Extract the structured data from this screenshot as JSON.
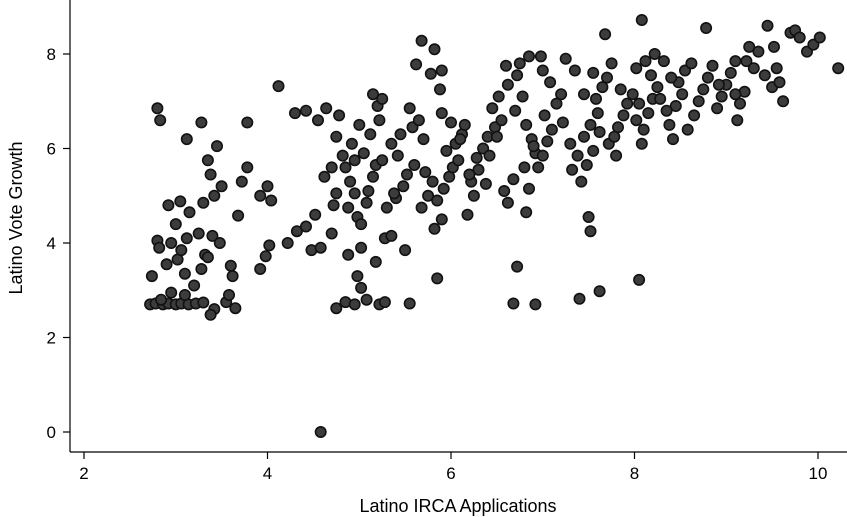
{
  "chart_data": {
    "type": "scatter",
    "title": "",
    "xlabel": "Latino IRCA Applications",
    "ylabel": "Latino Vote Growth",
    "xlim": [
      1.8,
      10.35
    ],
    "ylim": [
      -0.2,
      9.0
    ],
    "xticks": [
      2,
      4,
      6,
      8,
      10
    ],
    "yticks": [
      0,
      2,
      4,
      6,
      8
    ],
    "grid": false,
    "legend": "none",
    "marker_fill": "#3c3c3c",
    "marker_edge": "#111111",
    "points": [
      [
        2.72,
        2.7
      ],
      [
        2.78,
        2.72
      ],
      [
        2.86,
        2.7
      ],
      [
        2.92,
        2.72
      ],
      [
        3.0,
        2.7
      ],
      [
        3.06,
        2.72
      ],
      [
        3.14,
        2.7
      ],
      [
        3.22,
        2.72
      ],
      [
        2.84,
        2.8
      ],
      [
        3.3,
        2.74
      ],
      [
        2.95,
        2.95
      ],
      [
        3.1,
        2.9
      ],
      [
        3.42,
        2.6
      ],
      [
        3.55,
        2.75
      ],
      [
        3.58,
        2.9
      ],
      [
        3.65,
        2.62
      ],
      [
        3.38,
        2.48
      ],
      [
        2.74,
        3.3
      ],
      [
        2.9,
        3.55
      ],
      [
        3.02,
        3.65
      ],
      [
        3.1,
        3.35
      ],
      [
        3.2,
        3.1
      ],
      [
        3.28,
        3.45
      ],
      [
        3.32,
        3.75
      ],
      [
        3.06,
        3.85
      ],
      [
        2.95,
        4.0
      ],
      [
        2.8,
        4.05
      ],
      [
        3.12,
        4.1
      ],
      [
        3.25,
        4.2
      ],
      [
        3.4,
        4.15
      ],
      [
        3.48,
        4.0
      ],
      [
        3.35,
        3.7
      ],
      [
        2.82,
        3.9
      ],
      [
        3.0,
        4.4
      ],
      [
        2.92,
        4.8
      ],
      [
        3.05,
        4.88
      ],
      [
        3.15,
        4.65
      ],
      [
        3.3,
        4.85
      ],
      [
        3.42,
        5.0
      ],
      [
        3.5,
        5.2
      ],
      [
        3.38,
        5.45
      ],
      [
        3.35,
        5.75
      ],
      [
        3.45,
        6.05
      ],
      [
        3.72,
        5.3
      ],
      [
        3.78,
        5.6
      ],
      [
        3.68,
        4.58
      ],
      [
        3.6,
        3.52
      ],
      [
        3.62,
        3.3
      ],
      [
        2.8,
        6.85
      ],
      [
        2.83,
        6.6
      ],
      [
        3.12,
        6.2
      ],
      [
        3.28,
        6.55
      ],
      [
        3.78,
        6.55
      ],
      [
        3.92,
        3.45
      ],
      [
        3.98,
        3.72
      ],
      [
        4.02,
        3.95
      ],
      [
        3.92,
        5.0
      ],
      [
        4.0,
        5.2
      ],
      [
        4.04,
        4.9
      ],
      [
        4.12,
        7.32
      ],
      [
        4.22,
        4.0
      ],
      [
        4.32,
        4.25
      ],
      [
        4.42,
        4.35
      ],
      [
        4.52,
        4.6
      ],
      [
        4.3,
        6.75
      ],
      [
        4.42,
        6.8
      ],
      [
        4.55,
        6.6
      ],
      [
        4.62,
        5.4
      ],
      [
        4.48,
        3.85
      ],
      [
        4.58,
        3.9
      ],
      [
        4.7,
        4.2
      ],
      [
        4.72,
        4.8
      ],
      [
        4.64,
        6.85
      ],
      [
        4.78,
        6.7
      ],
      [
        4.75,
        6.25
      ],
      [
        4.82,
        5.85
      ],
      [
        4.85,
        5.6
      ],
      [
        4.9,
        5.3
      ],
      [
        4.95,
        5.05
      ],
      [
        4.88,
        4.75
      ],
      [
        4.98,
        4.55
      ],
      [
        5.02,
        4.4
      ],
      [
        5.08,
        4.85
      ],
      [
        5.1,
        5.1
      ],
      [
        5.15,
        5.4
      ],
      [
        5.18,
        5.65
      ],
      [
        5.05,
        5.9
      ],
      [
        4.92,
        6.1
      ],
      [
        5.0,
        6.5
      ],
      [
        5.12,
        6.3
      ],
      [
        5.22,
        6.6
      ],
      [
        5.2,
        6.9
      ],
      [
        5.15,
        7.15
      ],
      [
        5.25,
        7.05
      ],
      [
        4.98,
        3.3
      ],
      [
        5.02,
        3.05
      ],
      [
        5.08,
        2.8
      ],
      [
        4.85,
        2.75
      ],
      [
        4.75,
        2.62
      ],
      [
        4.95,
        2.7
      ],
      [
        5.22,
        2.7
      ],
      [
        5.28,
        2.75
      ],
      [
        5.55,
        2.72
      ],
      [
        4.88,
        3.75
      ],
      [
        5.02,
        3.9
      ],
      [
        5.18,
        3.6
      ],
      [
        5.28,
        4.1
      ],
      [
        5.35,
        4.15
      ],
      [
        5.5,
        3.85
      ],
      [
        5.3,
        4.75
      ],
      [
        5.4,
        4.95
      ],
      [
        5.48,
        5.2
      ],
      [
        5.52,
        5.45
      ],
      [
        5.6,
        5.65
      ],
      [
        5.42,
        5.85
      ],
      [
        5.35,
        6.1
      ],
      [
        5.45,
        6.3
      ],
      [
        5.58,
        6.45
      ],
      [
        5.65,
        6.6
      ],
      [
        5.55,
        6.85
      ],
      [
        5.62,
        7.78
      ],
      [
        5.68,
        8.28
      ],
      [
        5.82,
        8.1
      ],
      [
        5.9,
        7.65
      ],
      [
        5.78,
        7.58
      ],
      [
        5.88,
        7.25
      ],
      [
        5.72,
        5.5
      ],
      [
        5.8,
        5.3
      ],
      [
        5.75,
        5.0
      ],
      [
        5.68,
        4.75
      ],
      [
        5.85,
        4.9
      ],
      [
        5.92,
        5.15
      ],
      [
        5.98,
        5.4
      ],
      [
        6.02,
        5.6
      ],
      [
        6.08,
        5.75
      ],
      [
        5.95,
        5.95
      ],
      [
        6.05,
        6.1
      ],
      [
        6.12,
        6.3
      ],
      [
        6.0,
        6.55
      ],
      [
        5.9,
        6.75
      ],
      [
        5.82,
        4.3
      ],
      [
        5.9,
        4.5
      ],
      [
        5.85,
        3.25
      ],
      [
        6.18,
        4.6
      ],
      [
        6.25,
        5.0
      ],
      [
        6.22,
        5.3
      ],
      [
        6.3,
        5.55
      ],
      [
        6.28,
        5.8
      ],
      [
        6.35,
        6.0
      ],
      [
        6.42,
        5.85
      ],
      [
        6.4,
        6.25
      ],
      [
        6.48,
        6.45
      ],
      [
        6.55,
        6.6
      ],
      [
        6.45,
        6.85
      ],
      [
        6.52,
        7.1
      ],
      [
        6.62,
        7.35
      ],
      [
        6.6,
        7.75
      ],
      [
        6.75,
        7.8
      ],
      [
        6.85,
        7.95
      ],
      [
        6.72,
        7.55
      ],
      [
        6.78,
        7.1
      ],
      [
        6.7,
        6.8
      ],
      [
        6.82,
        6.5
      ],
      [
        6.88,
        6.2
      ],
      [
        6.92,
        5.9
      ],
      [
        6.8,
        5.6
      ],
      [
        6.68,
        5.35
      ],
      [
        6.58,
        5.1
      ],
      [
        6.62,
        4.85
      ],
      [
        6.72,
        3.5
      ],
      [
        6.68,
        2.72
      ],
      [
        6.92,
        2.7
      ],
      [
        6.82,
        4.65
      ],
      [
        6.85,
        5.15
      ],
      [
        6.95,
        5.6
      ],
      [
        7.0,
        5.85
      ],
      [
        7.05,
        6.15
      ],
      [
        7.1,
        6.4
      ],
      [
        7.02,
        6.7
      ],
      [
        7.15,
        6.95
      ],
      [
        7.2,
        7.15
      ],
      [
        7.08,
        7.4
      ],
      [
        7.0,
        7.65
      ],
      [
        6.98,
        7.95
      ],
      [
        7.25,
        7.9
      ],
      [
        7.35,
        7.65
      ],
      [
        7.3,
        6.1
      ],
      [
        7.38,
        5.85
      ],
      [
        7.32,
        5.55
      ],
      [
        7.42,
        5.3
      ],
      [
        7.48,
        5.65
      ],
      [
        7.55,
        5.95
      ],
      [
        7.45,
        6.25
      ],
      [
        7.52,
        6.5
      ],
      [
        7.6,
        6.75
      ],
      [
        7.58,
        7.05
      ],
      [
        7.65,
        7.3
      ],
      [
        7.55,
        7.6
      ],
      [
        7.7,
        7.5
      ],
      [
        7.75,
        7.8
      ],
      [
        7.68,
        8.42
      ],
      [
        7.62,
        6.35
      ],
      [
        7.72,
        6.1
      ],
      [
        7.8,
        5.85
      ],
      [
        7.82,
        6.45
      ],
      [
        7.88,
        6.7
      ],
      [
        7.92,
        6.95
      ],
      [
        7.85,
        7.25
      ],
      [
        7.98,
        7.15
      ],
      [
        8.05,
        6.95
      ],
      [
        8.02,
        6.6
      ],
      [
        8.1,
        6.4
      ],
      [
        8.08,
        6.1
      ],
      [
        8.15,
        6.75
      ],
      [
        8.2,
        7.05
      ],
      [
        8.25,
        7.3
      ],
      [
        8.18,
        7.55
      ],
      [
        8.12,
        7.85
      ],
      [
        8.08,
        8.72
      ],
      [
        8.22,
        8.0
      ],
      [
        8.32,
        7.85
      ],
      [
        8.28,
        7.05
      ],
      [
        8.35,
        6.8
      ],
      [
        8.38,
        6.5
      ],
      [
        8.42,
        6.2
      ],
      [
        8.45,
        6.9
      ],
      [
        8.52,
        7.15
      ],
      [
        8.48,
        7.4
      ],
      [
        8.55,
        7.65
      ],
      [
        8.62,
        7.8
      ],
      [
        8.58,
        6.4
      ],
      [
        8.65,
        6.7
      ],
      [
        8.7,
        7.0
      ],
      [
        8.75,
        7.25
      ],
      [
        8.8,
        7.5
      ],
      [
        8.85,
        7.75
      ],
      [
        8.78,
        8.55
      ],
      [
        8.9,
        6.85
      ],
      [
        8.95,
        7.1
      ],
      [
        9.0,
        7.35
      ],
      [
        9.05,
        7.6
      ],
      [
        9.1,
        7.85
      ],
      [
        9.12,
        6.6
      ],
      [
        9.15,
        6.95
      ],
      [
        9.2,
        7.2
      ],
      [
        9.22,
        7.85
      ],
      [
        9.25,
        8.15
      ],
      [
        9.3,
        7.7
      ],
      [
        9.35,
        8.05
      ],
      [
        9.42,
        7.55
      ],
      [
        9.45,
        8.6
      ],
      [
        9.5,
        7.3
      ],
      [
        9.55,
        7.7
      ],
      [
        9.52,
        8.15
      ],
      [
        9.58,
        7.4
      ],
      [
        9.62,
        7.0
      ],
      [
        9.7,
        8.45
      ],
      [
        9.75,
        8.5
      ],
      [
        9.8,
        8.35
      ],
      [
        9.88,
        8.05
      ],
      [
        9.95,
        8.2
      ],
      [
        10.02,
        8.35
      ],
      [
        10.22,
        7.7
      ],
      [
        7.5,
        4.55
      ],
      [
        7.52,
        4.25
      ],
      [
        7.4,
        2.82
      ],
      [
        7.62,
        2.98
      ],
      [
        8.05,
        3.22
      ],
      [
        4.58,
        0.0
      ],
      [
        6.1,
        6.2
      ],
      [
        6.2,
        5.45
      ],
      [
        5.7,
        6.2
      ],
      [
        6.38,
        5.25
      ],
      [
        6.15,
        6.5
      ],
      [
        5.25,
        5.75
      ],
      [
        5.38,
        5.05
      ],
      [
        4.75,
        5.05
      ],
      [
        4.7,
        5.6
      ],
      [
        4.95,
        5.75
      ],
      [
        6.5,
        6.25
      ],
      [
        6.9,
        6.05
      ],
      [
        7.22,
        6.55
      ],
      [
        7.45,
        7.15
      ],
      [
        7.78,
        6.25
      ],
      [
        8.4,
        7.5
      ],
      [
        8.02,
        7.7
      ],
      [
        8.92,
        7.35
      ],
      [
        9.1,
        7.15
      ]
    ]
  }
}
